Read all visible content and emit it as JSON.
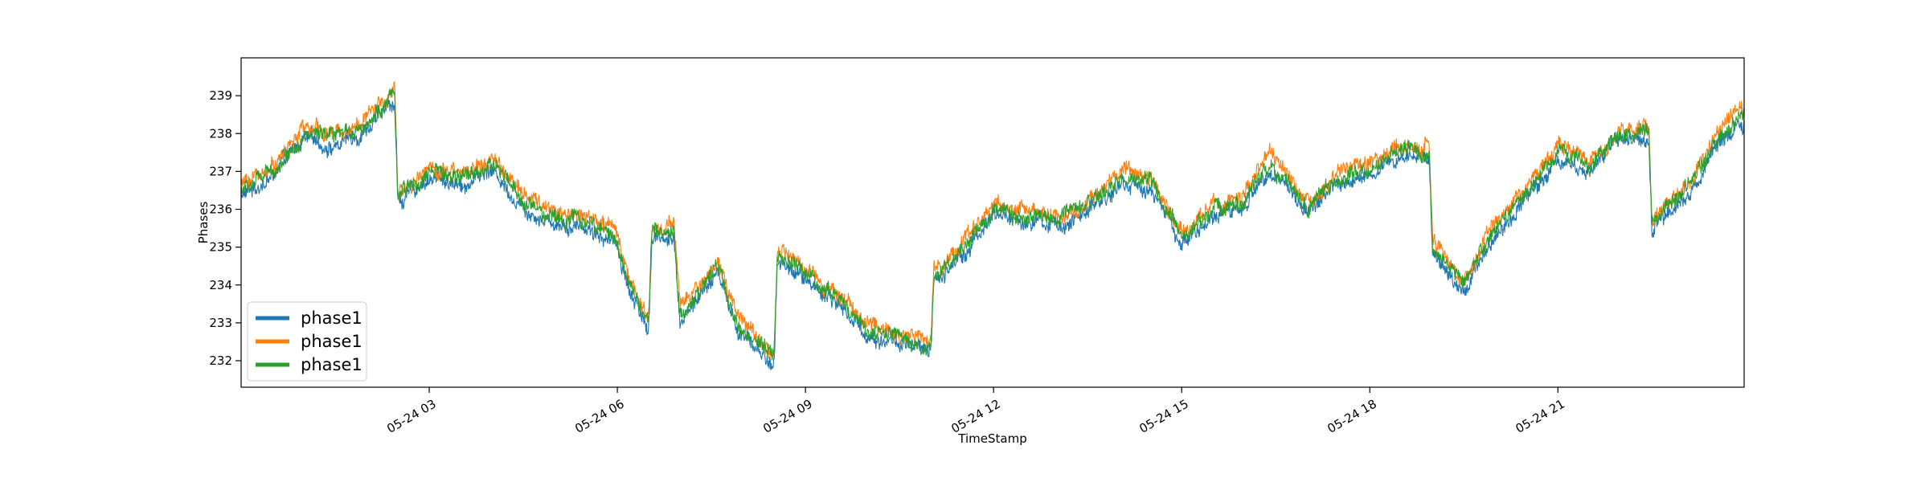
{
  "chart_data": {
    "type": "line",
    "xlabel": "TimeStamp",
    "ylabel": "Phases",
    "x_range": [
      "05-24 00:00",
      "23:58"
    ],
    "xlim_hours": [
      0,
      23.97
    ],
    "ylim": [
      231.3,
      240.0
    ],
    "yticks": [
      232,
      233,
      234,
      235,
      236,
      237,
      238,
      239
    ],
    "xticks": [
      {
        "hour": 3,
        "label": "05-24 03"
      },
      {
        "hour": 6,
        "label": "05-24 06"
      },
      {
        "hour": 9,
        "label": "05-24 09"
      },
      {
        "hour": 12,
        "label": "05-24 12"
      },
      {
        "hour": 15,
        "label": "05-24 15"
      },
      {
        "hour": 18,
        "label": "05-24 18"
      },
      {
        "hour": 21,
        "label": "05-24 21"
      }
    ],
    "grid": false,
    "legend": "lower-left",
    "series": [
      {
        "name": "phase1",
        "color": "#1f77b4",
        "offset": -0.15
      },
      {
        "name": "phase1",
        "color": "#ff7f0e",
        "offset": 0.15
      },
      {
        "name": "phase1",
        "color": "#2ca02c",
        "offset": 0.0
      }
    ],
    "trend": {
      "hours": [
        0,
        0.5,
        1.0,
        1.5,
        2.0,
        2.45,
        2.5,
        3.0,
        3.5,
        4.0,
        4.5,
        5.0,
        5.5,
        6.0,
        6.2,
        6.5,
        6.55,
        6.9,
        7.0,
        7.3,
        7.6,
        7.9,
        8.2,
        8.5,
        8.55,
        9.0,
        9.5,
        10.0,
        10.5,
        11.0,
        11.05,
        11.5,
        12.0,
        12.5,
        13.0,
        13.5,
        14.0,
        14.5,
        15.0,
        15.5,
        16.0,
        16.4,
        17.0,
        17.5,
        18.0,
        18.5,
        18.95,
        19.0,
        19.5,
        20.0,
        20.5,
        21.0,
        21.5,
        22.0,
        22.45,
        22.5,
        23.0,
        23.5,
        23.97
      ],
      "values": [
        236.5,
        237.0,
        238.0,
        237.8,
        238.3,
        239.0,
        236.3,
        237.0,
        236.8,
        237.2,
        236.2,
        235.8,
        235.7,
        235.2,
        234.0,
        233.0,
        235.3,
        235.5,
        233.2,
        233.8,
        234.5,
        233.0,
        232.5,
        232.0,
        234.8,
        234.3,
        233.7,
        232.8,
        232.6,
        232.3,
        234.2,
        235.0,
        236.0,
        235.8,
        235.7,
        236.0,
        236.8,
        236.7,
        235.2,
        236.0,
        236.2,
        237.3,
        236.1,
        236.8,
        237.0,
        237.5,
        237.6,
        235.0,
        234.0,
        235.5,
        236.5,
        237.5,
        237.2,
        238.0,
        238.0,
        235.6,
        236.4,
        237.8,
        238.6
      ]
    }
  }
}
